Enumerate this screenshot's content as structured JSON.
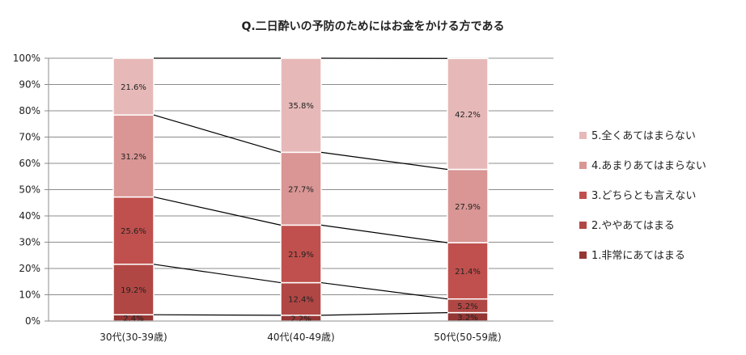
{
  "chart_data": {
    "type": "stacked-bar-100",
    "title": "Q.二日酔いの予防のためにはお金をかける方である",
    "categories": [
      "30代(30-39歳)",
      "40代(40-49歳)",
      "50代(50-59歳)"
    ],
    "series": [
      {
        "name": "1.非常にあてはまる",
        "color": "#943634",
        "values": [
          2.4,
          2.2,
          3.2
        ],
        "labels": [
          "2.4%",
          "2.2%",
          "3.2%"
        ]
      },
      {
        "name": "2.ややあてはまる",
        "color": "#b04744",
        "values": [
          19.2,
          12.4,
          5.2
        ],
        "labels": [
          "19.2%",
          "12.4%",
          "5.2%"
        ]
      },
      {
        "name": "3.どちらとも言えない",
        "color": "#c0504d",
        "values": [
          25.6,
          21.9,
          21.4
        ],
        "labels": [
          "25.6%",
          "21.9%",
          "21.4%"
        ]
      },
      {
        "name": "4.あまりあてはまらない",
        "color": "#d99694",
        "values": [
          31.2,
          27.7,
          27.9
        ],
        "labels": [
          "31.2%",
          "27.7%",
          "27.9%"
        ]
      },
      {
        "name": "5.全くあてはまらない",
        "color": "#e6b9b8",
        "values": [
          21.6,
          35.8,
          42.2
        ],
        "labels": [
          "21.6%",
          "35.8%",
          "42.2%"
        ]
      }
    ],
    "y_ticks": [
      "0%",
      "10%",
      "20%",
      "30%",
      "40%",
      "50%",
      "60%",
      "70%",
      "80%",
      "90%",
      "100%"
    ],
    "ylim": [
      0,
      100
    ],
    "grid": true,
    "series_lines": true,
    "legend": "right"
  }
}
